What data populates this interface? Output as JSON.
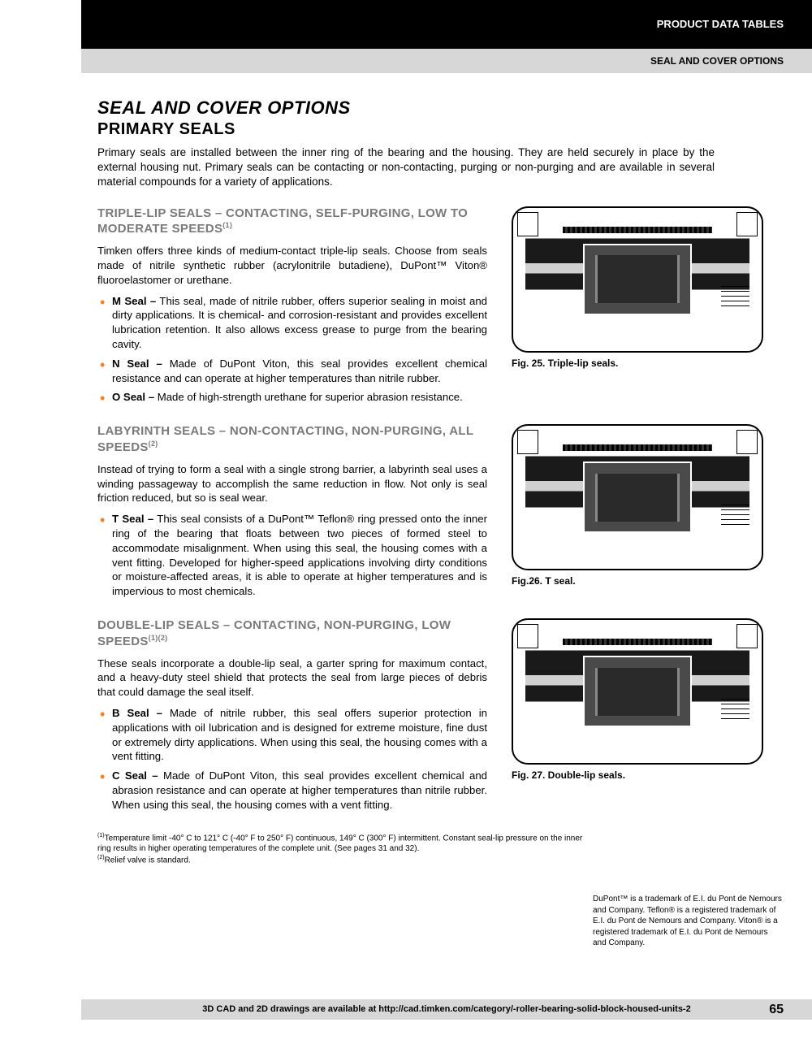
{
  "header": {
    "black_label": "PRODUCT DATA TABLES",
    "gray_label": "SEAL AND COVER OPTIONS"
  },
  "title": "SEAL AND COVER OPTIONS",
  "subtitle": "PRIMARY SEALS",
  "intro": "Primary seals are installed between the inner ring of the bearing and the housing. They are held securely in place by the external housing nut. Primary seals can be contacting or non-contacting, purging or non-purging and are available in several material compounds for a variety of applications.",
  "sections": [
    {
      "heading": "TRIPLE-LIP SEALS – CONTACTING, SELF-PURGING, LOW TO MODERATE SPEEDS",
      "heading_sup": "(1)",
      "para": "Timken offers three kinds of medium-contact triple-lip seals. Choose from seals made of nitrile synthetic rubber (acrylonitrile butadiene), DuPont™ Viton® fluoroelastomer or urethane.",
      "bullets": [
        {
          "label": "M Seal –",
          "text": " This seal, made of nitrile rubber, offers superior sealing in moist and dirty applications. It is chemical- and corrosion-resistant and provides excellent lubrication retention. It also allows excess grease to purge from the bearing cavity."
        },
        {
          "label": "N Seal –",
          "text": " Made of DuPont Viton, this seal provides excellent chemical resistance and can operate at higher temperatures than nitrile rubber."
        },
        {
          "label": "O Seal –",
          "text": " Made of high-strength urethane for superior abrasion resistance."
        }
      ],
      "fig_caption": "Fig. 25. Triple-lip seals."
    },
    {
      "heading": "LABYRINTH SEALS – NON-CONTACTING, NON-PURGING, ALL SPEEDS",
      "heading_sup": "(2)",
      "para": "Instead of trying to form a seal with a single strong barrier, a labyrinth seal uses a winding passageway to accomplish the same reduction in flow. Not only is seal friction reduced, but so is seal wear.",
      "bullets": [
        {
          "label": "T Seal –",
          "text": " This seal consists of a DuPont™ Teflon® ring pressed onto the inner ring of the bearing that floats between two pieces of formed steel to accommodate misalignment. When using this seal, the housing comes with a vent fitting. Developed for higher-speed applications involving dirty conditions or moisture-affected areas, it is able to operate at higher temperatures and is impervious to most chemicals."
        }
      ],
      "fig_caption": "Fig.26. T seal."
    },
    {
      "heading": "DOUBLE-LIP SEALS – CONTACTING, NON-PURGING, LOW SPEEDS",
      "heading_sup": "(1)(2)",
      "para": "These seals incorporate a double-lip seal, a garter spring for maximum contact, and a heavy-duty steel shield that protects the seal from large pieces of debris that could damage the seal itself.",
      "bullets": [
        {
          "label": "B Seal –",
          "text": " Made of nitrile rubber, this seal offers superior protection in applications with oil lubrication and is designed for extreme moisture, fine dust or extremely dirty applications. When using this seal, the housing comes with a vent fitting."
        },
        {
          "label": "C Seal –",
          "text": " Made of DuPont Viton, this seal provides excellent chemical and abrasion resistance and can operate at higher temperatures than nitrile rubber. When using this seal, the housing comes with a vent fitting."
        }
      ],
      "fig_caption": "Fig. 27. Double-lip seals."
    }
  ],
  "footnotes": [
    {
      "sup": "(1)",
      "text": "Temperature limit -40° C to 121° C (-40° F to 250° F) continuous, 149° C (300° F) intermittent. Constant seal-lip pressure on the inner ring results in higher operating temperatures of the complete unit. (See pages 31 and 32)."
    },
    {
      "sup": "(2)",
      "text": "Relief valve is standard."
    }
  ],
  "trademark": "DuPont™ is a trademark of E.I. du Pont de Nemours and Company. Teflon® is a registered trademark of E.I. du Pont de Nemours and Company. Viton® is a registered trademark of E.I. du Pont de Nemours and Company.",
  "footer": "3D CAD and 2D drawings are available at http://cad.timken.com/category/-roller-bearing-solid-block-housed-units-2",
  "page_number": "65",
  "colors": {
    "accent": "#f58220",
    "gray_heading": "#7a7a7a",
    "bar_gray": "#d7d7d7"
  }
}
